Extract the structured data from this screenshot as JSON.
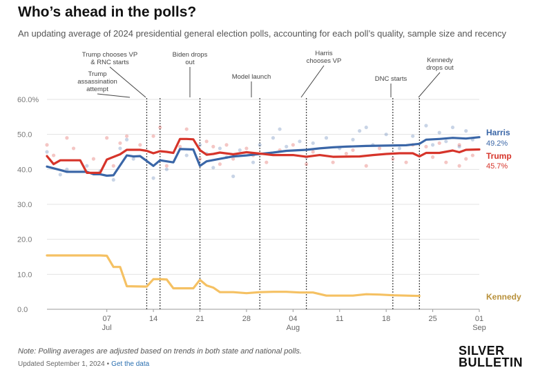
{
  "header": {
    "title": "Who’s ahead in the polls?",
    "subtitle": "An updating average of 2024 presidential general election polls, accounting for each poll’s quality, sample size and recency"
  },
  "footer": {
    "note": "Note: Polling averages are adjusted based on trends in both state and national polls.",
    "updated": "Updated September 1, 2024",
    "separator": "•",
    "link_label": "Get the data"
  },
  "logo": {
    "line1": "SILVER",
    "line2": "BULLETIN"
  },
  "chart_data": {
    "type": "line",
    "x_axis": {
      "range": [
        "2024-06-28",
        "2024-09-01"
      ],
      "ticks": [
        {
          "date": "2024-07-07",
          "label": "07",
          "month": "Jul"
        },
        {
          "date": "2024-07-14",
          "label": "14",
          "month": ""
        },
        {
          "date": "2024-07-21",
          "label": "21",
          "month": ""
        },
        {
          "date": "2024-07-28",
          "label": "28",
          "month": ""
        },
        {
          "date": "2024-08-04",
          "label": "04",
          "month": "Aug"
        },
        {
          "date": "2024-08-11",
          "label": "11",
          "month": ""
        },
        {
          "date": "2024-08-18",
          "label": "18",
          "month": ""
        },
        {
          "date": "2024-08-25",
          "label": "25",
          "month": ""
        },
        {
          "date": "2024-09-01",
          "label": "01",
          "month": "Sep"
        }
      ]
    },
    "y_axis": {
      "range": [
        0,
        60
      ],
      "ticks": [
        {
          "value": 0,
          "label": "0.0"
        },
        {
          "value": 10,
          "label": "10.0"
        },
        {
          "value": 20,
          "label": "20.0"
        },
        {
          "value": 30,
          "label": "30.0"
        },
        {
          "value": 40,
          "label": "40.0"
        },
        {
          "value": 50,
          "label": "50.0"
        },
        {
          "value": 60,
          "label": "60.0%"
        }
      ]
    },
    "grid": true,
    "annotations": [
      {
        "date": "2024-07-13",
        "lines": [
          "Trump",
          "assassination",
          "attempt"
        ]
      },
      {
        "date": "2024-07-15",
        "lines": [
          "Trump chooses VP",
          "& RNC starts"
        ]
      },
      {
        "date": "2024-07-21",
        "lines": [
          "Biden drops",
          "out"
        ]
      },
      {
        "date": "2024-07-30",
        "lines": [
          "Model launch"
        ]
      },
      {
        "date": "2024-08-06",
        "lines": [
          "Harris",
          "chooses VP"
        ]
      },
      {
        "date": "2024-08-19",
        "lines": [
          "DNC starts"
        ]
      },
      {
        "date": "2024-08-23",
        "lines": [
          "Kennedy",
          "drops out"
        ]
      }
    ],
    "series": [
      {
        "name": "Harris",
        "label": "49.2%",
        "color": "#3a66a7",
        "points": [
          [
            "2024-06-28",
            40.8
          ],
          [
            "2024-06-30",
            39.8
          ],
          [
            "2024-07-01",
            39.3
          ],
          [
            "2024-07-04",
            39.3
          ],
          [
            "2024-07-05",
            38.6
          ],
          [
            "2024-07-06",
            38.6
          ],
          [
            "2024-07-07",
            38.2
          ],
          [
            "2024-07-08",
            38.3
          ],
          [
            "2024-07-10",
            44.0
          ],
          [
            "2024-07-11",
            43.7
          ],
          [
            "2024-07-12",
            43.8
          ],
          [
            "2024-07-14",
            41.0
          ],
          [
            "2024-07-15",
            42.6
          ],
          [
            "2024-07-16",
            42.3
          ],
          [
            "2024-07-17",
            42.0
          ],
          [
            "2024-07-18",
            45.8
          ],
          [
            "2024-07-20",
            45.7
          ],
          [
            "2024-07-21",
            41.0
          ],
          [
            "2024-07-22",
            42.3
          ],
          [
            "2024-07-24",
            43.0
          ],
          [
            "2024-07-26",
            43.7
          ],
          [
            "2024-07-28",
            44.0
          ],
          [
            "2024-07-30",
            44.4
          ],
          [
            "2024-08-01",
            44.8
          ],
          [
            "2024-08-03",
            45.3
          ],
          [
            "2024-08-06",
            45.6
          ],
          [
            "2024-08-08",
            46.0
          ],
          [
            "2024-08-10",
            46.3
          ],
          [
            "2024-08-12",
            46.5
          ],
          [
            "2024-08-15",
            46.7
          ],
          [
            "2024-08-18",
            46.8
          ],
          [
            "2024-08-21",
            46.9
          ],
          [
            "2024-08-23",
            47.3
          ],
          [
            "2024-08-24",
            48.5
          ],
          [
            "2024-08-26",
            48.7
          ],
          [
            "2024-08-28",
            49.0
          ],
          [
            "2024-08-30",
            48.8
          ],
          [
            "2024-09-01",
            49.2
          ]
        ]
      },
      {
        "name": "Trump",
        "label": "45.7%",
        "color": "#d6342a",
        "points": [
          [
            "2024-06-28",
            43.8
          ],
          [
            "2024-06-29",
            41.5
          ],
          [
            "2024-06-30",
            42.6
          ],
          [
            "2024-07-02",
            42.6
          ],
          [
            "2024-07-03",
            42.6
          ],
          [
            "2024-07-04",
            39.0
          ],
          [
            "2024-07-05",
            39.0
          ],
          [
            "2024-07-06",
            39.0
          ],
          [
            "2024-07-07",
            42.8
          ],
          [
            "2024-07-09",
            44.3
          ],
          [
            "2024-07-10",
            45.6
          ],
          [
            "2024-07-12",
            45.6
          ],
          [
            "2024-07-13",
            45.3
          ],
          [
            "2024-07-14",
            44.6
          ],
          [
            "2024-07-15",
            45.2
          ],
          [
            "2024-07-16",
            45.0
          ],
          [
            "2024-07-17",
            44.7
          ],
          [
            "2024-07-18",
            48.7
          ],
          [
            "2024-07-19",
            48.7
          ],
          [
            "2024-07-20",
            48.6
          ],
          [
            "2024-07-21",
            45.5
          ],
          [
            "2024-07-22",
            44.2
          ],
          [
            "2024-07-23",
            44.4
          ],
          [
            "2024-07-24",
            44.8
          ],
          [
            "2024-07-26",
            44.3
          ],
          [
            "2024-07-28",
            44.9
          ],
          [
            "2024-07-30",
            44.5
          ],
          [
            "2024-08-01",
            44.1
          ],
          [
            "2024-08-04",
            44.1
          ],
          [
            "2024-08-06",
            43.6
          ],
          [
            "2024-08-08",
            44.1
          ],
          [
            "2024-08-10",
            43.6
          ],
          [
            "2024-08-14",
            43.7
          ],
          [
            "2024-08-16",
            44.1
          ],
          [
            "2024-08-18",
            44.4
          ],
          [
            "2024-08-20",
            44.6
          ],
          [
            "2024-08-22",
            44.6
          ],
          [
            "2024-08-23",
            43.7
          ],
          [
            "2024-08-24",
            44.7
          ],
          [
            "2024-08-26",
            44.7
          ],
          [
            "2024-08-28",
            45.4
          ],
          [
            "2024-08-29",
            44.9
          ],
          [
            "2024-08-30",
            45.6
          ],
          [
            "2024-09-01",
            45.7
          ]
        ]
      },
      {
        "name": "Kennedy",
        "label": "",
        "color": "#f5c163",
        "points": [
          [
            "2024-06-28",
            15.4
          ],
          [
            "2024-07-03",
            15.4
          ],
          [
            "2024-07-06",
            15.4
          ],
          [
            "2024-07-07",
            15.3
          ],
          [
            "2024-07-08",
            12.1
          ],
          [
            "2024-07-09",
            12.1
          ],
          [
            "2024-07-10",
            6.6
          ],
          [
            "2024-07-13",
            6.5
          ],
          [
            "2024-07-14",
            8.6
          ],
          [
            "2024-07-15",
            8.6
          ],
          [
            "2024-07-16",
            8.5
          ],
          [
            "2024-07-17",
            6.0
          ],
          [
            "2024-07-18",
            6.0
          ],
          [
            "2024-07-20",
            6.0
          ],
          [
            "2024-07-21",
            8.4
          ],
          [
            "2024-07-22",
            6.8
          ],
          [
            "2024-07-23",
            6.2
          ],
          [
            "2024-07-24",
            4.9
          ],
          [
            "2024-07-26",
            4.9
          ],
          [
            "2024-07-28",
            4.6
          ],
          [
            "2024-07-30",
            4.9
          ],
          [
            "2024-08-01",
            5.0
          ],
          [
            "2024-08-03",
            5.0
          ],
          [
            "2024-08-05",
            4.8
          ],
          [
            "2024-08-07",
            4.8
          ],
          [
            "2024-08-09",
            3.9
          ],
          [
            "2024-08-13",
            3.9
          ],
          [
            "2024-08-15",
            4.3
          ],
          [
            "2024-08-17",
            4.2
          ],
          [
            "2024-08-19",
            4.0
          ],
          [
            "2024-08-21",
            3.9
          ],
          [
            "2024-08-23",
            3.8
          ]
        ]
      }
    ],
    "polls": [
      {
        "series": "Harris",
        "points": [
          [
            "2024-06-28",
            45.0
          ],
          [
            "2024-06-30",
            38.5
          ],
          [
            "2024-07-01",
            40.0
          ],
          [
            "2024-07-04",
            41.0
          ],
          [
            "2024-07-06",
            39.5
          ],
          [
            "2024-07-08",
            37.0
          ],
          [
            "2024-07-09",
            46.0
          ],
          [
            "2024-07-10",
            48.5
          ],
          [
            "2024-07-11",
            43.0
          ],
          [
            "2024-07-14",
            37.5
          ],
          [
            "2024-07-16",
            40.0
          ],
          [
            "2024-07-19",
            44.0
          ],
          [
            "2024-07-21",
            47.0
          ],
          [
            "2024-07-22",
            44.5
          ],
          [
            "2024-07-23",
            40.5
          ],
          [
            "2024-07-24",
            46.0
          ],
          [
            "2024-07-25",
            43.5
          ],
          [
            "2024-07-26",
            38.0
          ],
          [
            "2024-07-27",
            45.5
          ],
          [
            "2024-07-29",
            42.0
          ],
          [
            "2024-07-30",
            47.0
          ],
          [
            "2024-08-01",
            49.0
          ],
          [
            "2024-08-02",
            51.5
          ],
          [
            "2024-08-03",
            46.5
          ],
          [
            "2024-08-05",
            48.0
          ],
          [
            "2024-08-06",
            43.5
          ],
          [
            "2024-08-07",
            47.5
          ],
          [
            "2024-08-09",
            49.0
          ],
          [
            "2024-08-11",
            46.0
          ],
          [
            "2024-08-13",
            48.5
          ],
          [
            "2024-08-14",
            51.0
          ],
          [
            "2024-08-15",
            52.0
          ],
          [
            "2024-08-16",
            47.0
          ],
          [
            "2024-08-18",
            50.0
          ],
          [
            "2024-08-20",
            46.0
          ],
          [
            "2024-08-22",
            49.5
          ],
          [
            "2024-08-24",
            52.5
          ],
          [
            "2024-08-25",
            47.0
          ],
          [
            "2024-08-26",
            50.5
          ],
          [
            "2024-08-27",
            48.0
          ],
          [
            "2024-08-28",
            52.0
          ],
          [
            "2024-08-29",
            46.5
          ],
          [
            "2024-08-30",
            51.0
          ],
          [
            "2024-08-31",
            48.5
          ]
        ]
      },
      {
        "series": "Trump",
        "points": [
          [
            "2024-06-28",
            47.0
          ],
          [
            "2024-06-29",
            44.0
          ],
          [
            "2024-07-01",
            49.0
          ],
          [
            "2024-07-02",
            46.0
          ],
          [
            "2024-07-05",
            43.0
          ],
          [
            "2024-07-07",
            49.0
          ],
          [
            "2024-07-08",
            41.0
          ],
          [
            "2024-07-09",
            47.5
          ],
          [
            "2024-07-10",
            49.5
          ],
          [
            "2024-07-12",
            47.0
          ],
          [
            "2024-07-14",
            49.5
          ],
          [
            "2024-07-15",
            52.0
          ],
          [
            "2024-07-16",
            41.0
          ],
          [
            "2024-07-18",
            46.5
          ],
          [
            "2024-07-19",
            51.5
          ],
          [
            "2024-07-21",
            43.0
          ],
          [
            "2024-07-22",
            48.0
          ],
          [
            "2024-07-23",
            46.5
          ],
          [
            "2024-07-24",
            41.5
          ],
          [
            "2024-07-25",
            47.0
          ],
          [
            "2024-07-26",
            43.0
          ],
          [
            "2024-07-28",
            46.0
          ],
          [
            "2024-07-29",
            44.0
          ],
          [
            "2024-07-31",
            42.0
          ],
          [
            "2024-08-02",
            45.5
          ],
          [
            "2024-08-04",
            47.0
          ],
          [
            "2024-08-06",
            41.5
          ],
          [
            "2024-08-07",
            45.0
          ],
          [
            "2024-08-10",
            42.0
          ],
          [
            "2024-08-12",
            44.5
          ],
          [
            "2024-08-13",
            45.5
          ],
          [
            "2024-08-15",
            41.0
          ],
          [
            "2024-08-17",
            46.0
          ],
          [
            "2024-08-19",
            43.0
          ],
          [
            "2024-08-21",
            42.0
          ],
          [
            "2024-08-22",
            47.0
          ],
          [
            "2024-08-24",
            46.5
          ],
          [
            "2024-08-25",
            43.5
          ],
          [
            "2024-08-26",
            47.5
          ],
          [
            "2024-08-27",
            42.0
          ],
          [
            "2024-08-29",
            47.0
          ],
          [
            "2024-08-29",
            41.0
          ],
          [
            "2024-08-30",
            43.0
          ],
          [
            "2024-08-31",
            44.0
          ]
        ]
      }
    ]
  }
}
